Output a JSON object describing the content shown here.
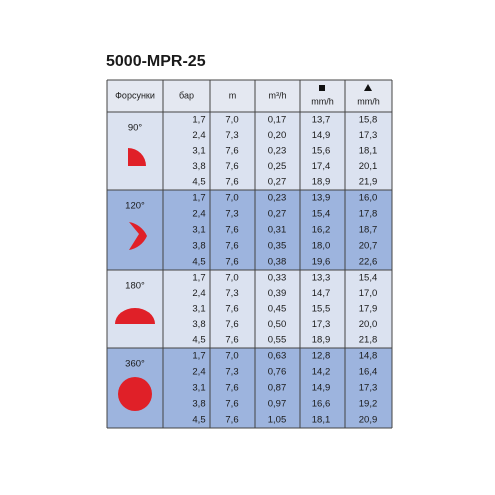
{
  "title": "5000-MPR-25",
  "header": {
    "nozzles": "Форсунки",
    "columns": [
      "бар",
      "m",
      "m³/h",
      "mm/h",
      "mm/h"
    ]
  },
  "groups": [
    {
      "label": "90°",
      "rows": [
        [
          "1,7",
          "7,0",
          "0,17",
          "13,7",
          "15,8"
        ],
        [
          "2,4",
          "7,3",
          "0,20",
          "14,9",
          "17,3"
        ],
        [
          "3,1",
          "7,6",
          "0,23",
          "15,6",
          "18,1"
        ],
        [
          "3,8",
          "7,6",
          "0,25",
          "17,4",
          "20,1"
        ],
        [
          "4,5",
          "7,6",
          "0,27",
          "18,9",
          "21,9"
        ]
      ]
    },
    {
      "label": "120°",
      "rows": [
        [
          "1,7",
          "7,0",
          "0,23",
          "13,9",
          "16,0"
        ],
        [
          "2,4",
          "7,3",
          "0,27",
          "15,4",
          "17,8"
        ],
        [
          "3,1",
          "7,6",
          "0,31",
          "16,2",
          "18,7"
        ],
        [
          "3,8",
          "7,6",
          "0,35",
          "18,0",
          "20,7"
        ],
        [
          "4,5",
          "7,6",
          "0,38",
          "19,6",
          "22,6"
        ]
      ]
    },
    {
      "label": "180°",
      "rows": [
        [
          "1,7",
          "7,0",
          "0,33",
          "13,3",
          "15,4"
        ],
        [
          "2,4",
          "7,3",
          "0,39",
          "14,7",
          "17,0"
        ],
        [
          "3,1",
          "7,6",
          "0,45",
          "15,5",
          "17,9"
        ],
        [
          "3,8",
          "7,6",
          "0,50",
          "17,3",
          "20,0"
        ],
        [
          "4,5",
          "7,6",
          "0,55",
          "18,9",
          "21,8"
        ]
      ]
    },
    {
      "label": "360°",
      "rows": [
        [
          "1,7",
          "7,0",
          "0,63",
          "12,8",
          "14,8"
        ],
        [
          "2,4",
          "7,3",
          "0,76",
          "14,2",
          "16,4"
        ],
        [
          "3,1",
          "7,6",
          "0,87",
          "14,9",
          "17,3"
        ],
        [
          "3,8",
          "7,6",
          "0,97",
          "16,6",
          "19,2"
        ],
        [
          "4,5",
          "7,6",
          "1,05",
          "18,1",
          "20,9"
        ]
      ]
    }
  ]
}
